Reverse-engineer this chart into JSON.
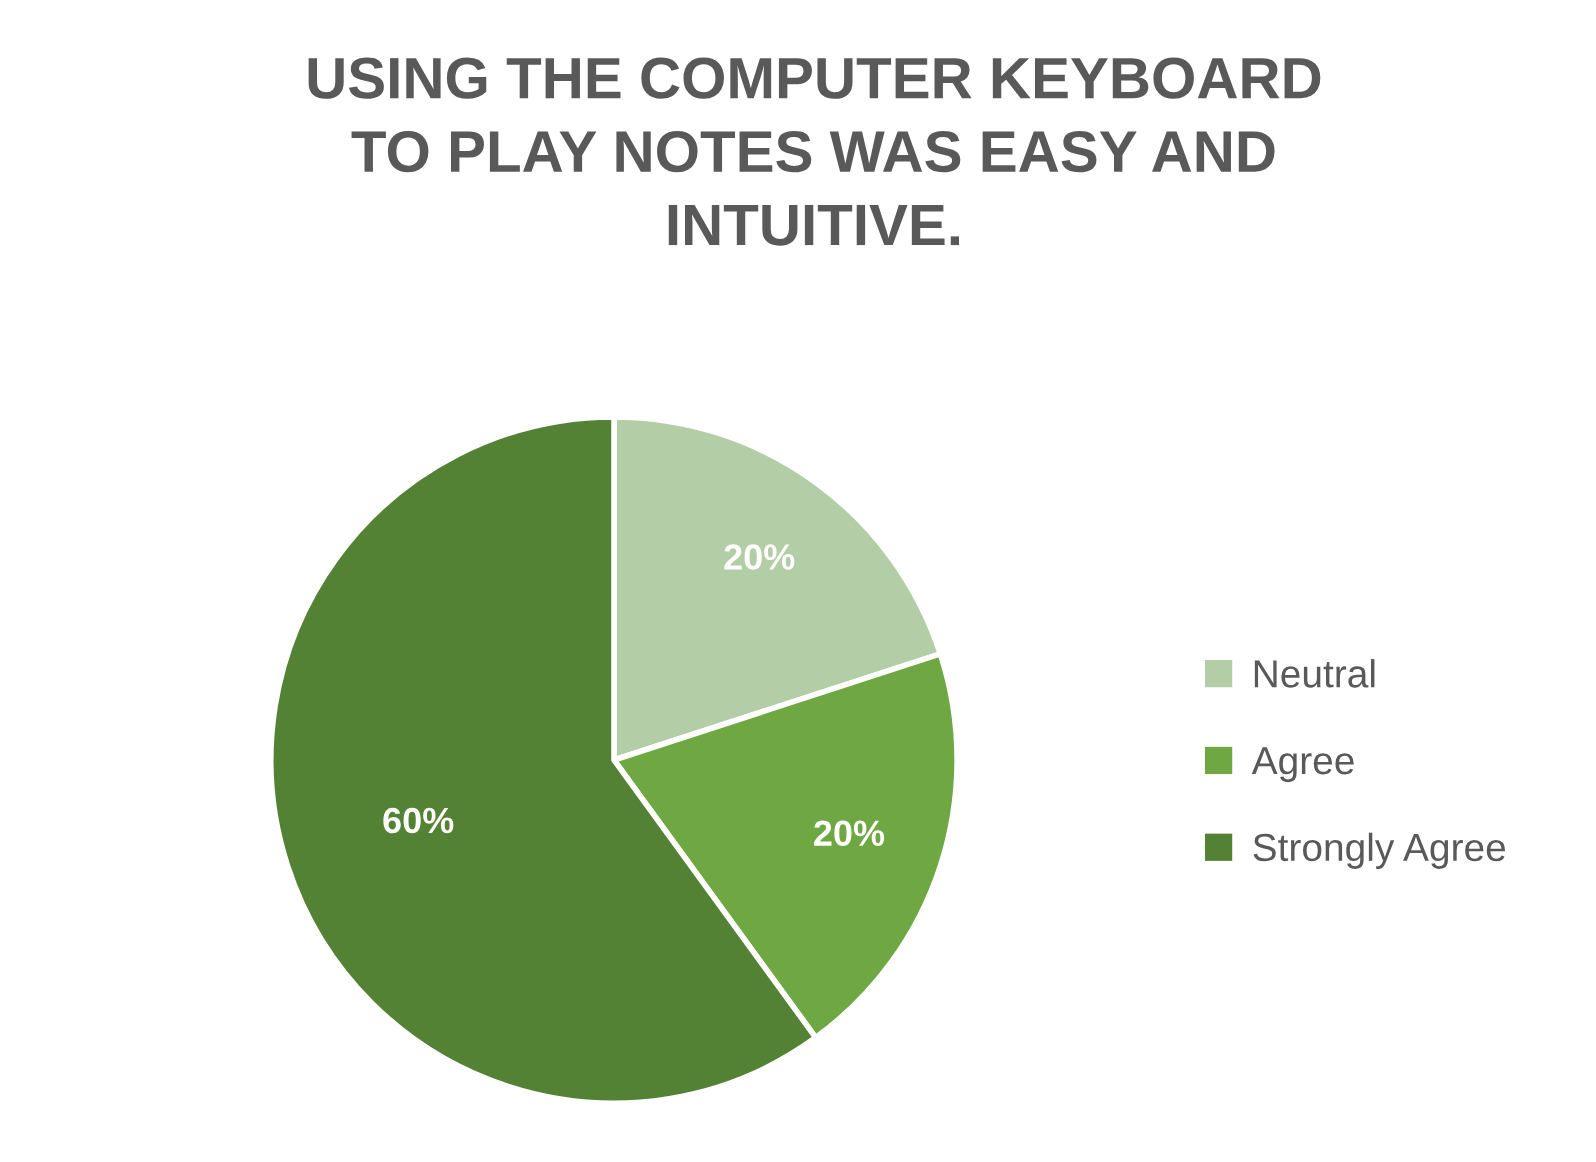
{
  "chart_data": {
    "type": "pie",
    "title": "USING THE COMPUTER KEYBOARD\nTO PLAY NOTES WAS EASY AND\nINTUITIVE.",
    "categories": [
      "Neutral",
      "Agree",
      "Strongly Agree"
    ],
    "values": [
      20,
      20,
      60
    ],
    "colors": [
      "#b3cea6",
      "#6fa842",
      "#548235"
    ],
    "value_labels": [
      "20%",
      "20%",
      "60%"
    ],
    "legend": "right"
  }
}
